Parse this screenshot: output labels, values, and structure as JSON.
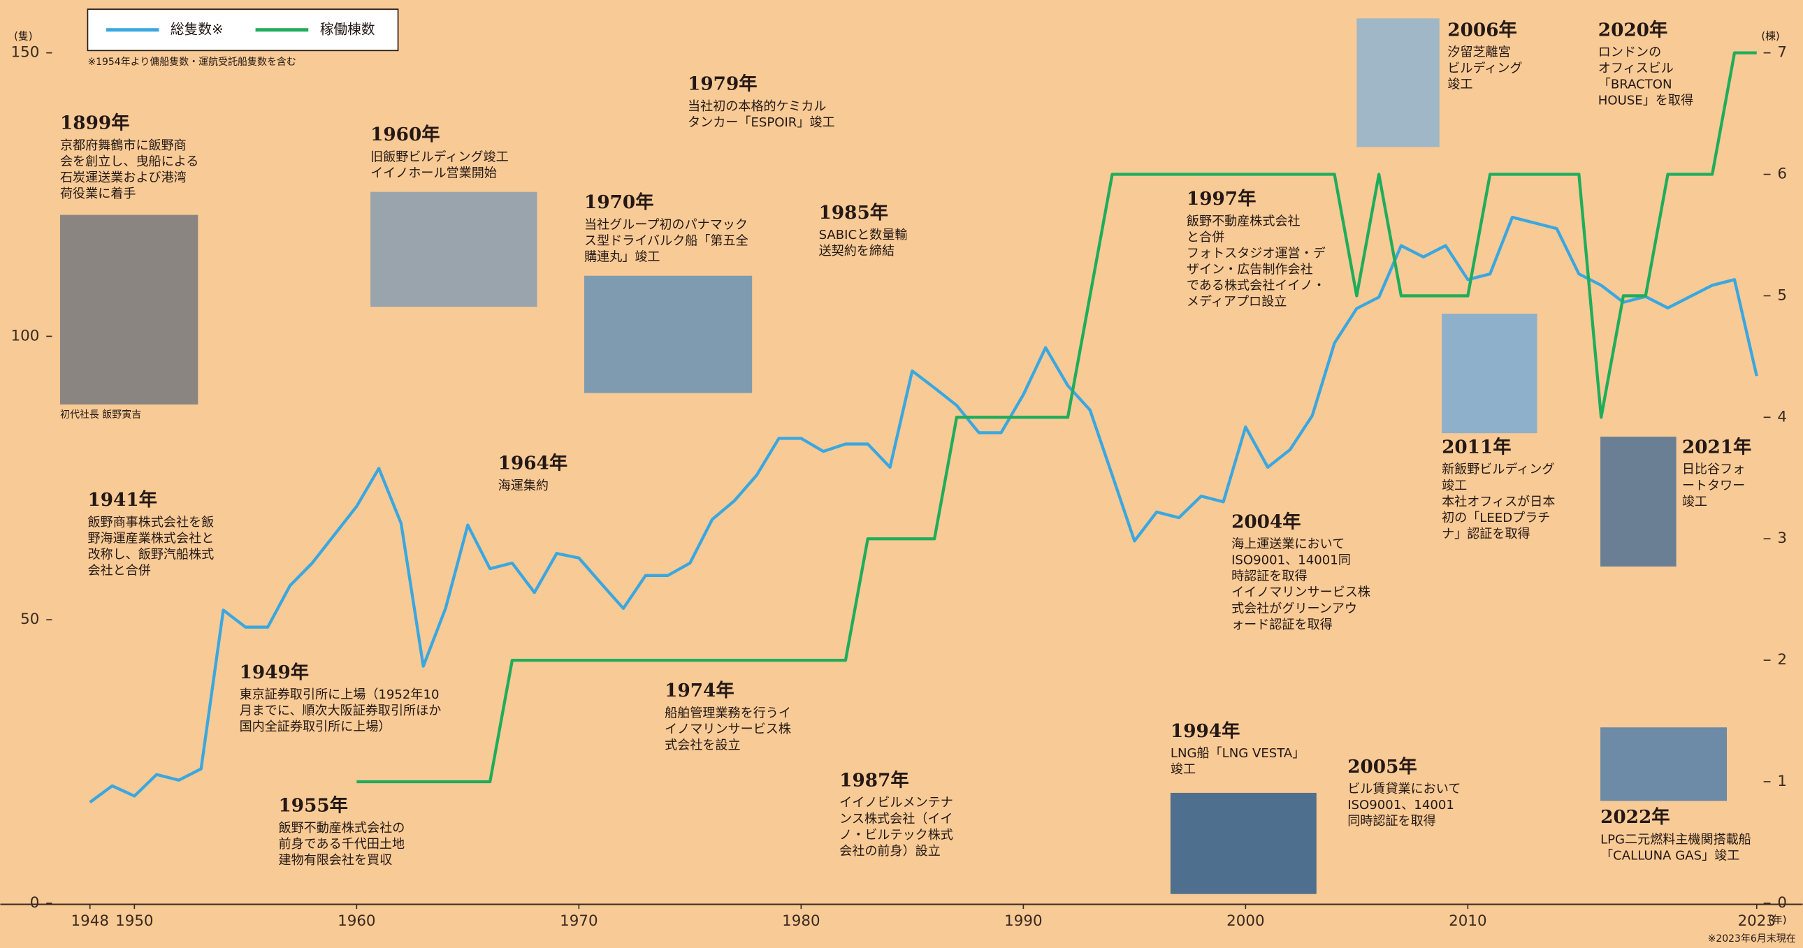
{
  "chart_data": {
    "type": "line",
    "y_label": "(隻)",
    "y2_label": "(棟)",
    "x_label": "(年)",
    "note_top": "※1954年より傭船隻数・運航受託船隻数を含む",
    "note_bottom": "※2023年6月末現在",
    "photo_caption": "初代社長 飯野寅吉",
    "x": [
      1948,
      1949,
      1950,
      1951,
      1952,
      1953,
      1954,
      1955,
      1956,
      1957,
      1958,
      1959,
      1960,
      1961,
      1962,
      1963,
      1964,
      1965,
      1966,
      1967,
      1968,
      1969,
      1970,
      1971,
      1972,
      1973,
      1974,
      1975,
      1976,
      1977,
      1978,
      1979,
      1980,
      1981,
      1982,
      1983,
      1984,
      1985,
      1986,
      1987,
      1988,
      1989,
      1990,
      1991,
      1992,
      1993,
      1994,
      1995,
      1996,
      1997,
      1998,
      1999,
      2000,
      2001,
      2002,
      2003,
      2004,
      2005,
      2006,
      2007,
      2008,
      2009,
      2010,
      2011,
      2012,
      2013,
      2014,
      2015,
      2016,
      2017,
      2018,
      2019,
      2020,
      2021,
      2022,
      2023
    ],
    "series": [
      {
        "name": "総隻数※",
        "color": "#3aa7e0",
        "values": [
          17.8,
          20.7,
          18.9,
          22.7,
          21.7,
          23.7,
          51.7,
          48.7,
          48.7,
          56,
          60,
          65,
          70,
          76.7,
          67,
          41.8,
          52,
          66.7,
          59,
          60,
          54.8,
          61.7,
          60.9,
          56.4,
          52,
          57.8,
          57.8,
          60,
          67.7,
          71,
          75.5,
          82,
          82,
          79.7,
          81,
          81,
          76.9,
          93.9,
          90.9,
          87.8,
          83,
          83,
          89.7,
          98,
          91.3,
          87,
          75.5,
          63.9,
          69,
          68,
          71.8,
          70.8,
          84,
          76.9,
          80,
          86,
          98.8,
          104.9,
          106.9,
          116,
          114,
          116,
          110,
          111,
          121,
          120,
          119,
          111,
          109,
          106,
          107,
          105,
          107,
          109,
          110,
          93
        ]
      },
      {
        "name": "稼働棟数",
        "color": "#1fad5c",
        "axis": "y2",
        "values": [
          null,
          null,
          null,
          null,
          null,
          null,
          null,
          null,
          null,
          null,
          null,
          null,
          1,
          1,
          1,
          1,
          1,
          1,
          1,
          2,
          2,
          2,
          2,
          2,
          2,
          2,
          2,
          2,
          2,
          2,
          2,
          2,
          2,
          2,
          2,
          3,
          3,
          3,
          3,
          4,
          4,
          4,
          4,
          4,
          4,
          5,
          6,
          6,
          6,
          6,
          6,
          6,
          6,
          6,
          6,
          6,
          6,
          5,
          6,
          5,
          5,
          5,
          5,
          6,
          6,
          6,
          6,
          6,
          4,
          5,
          5,
          6,
          6,
          6,
          7,
          7
        ]
      }
    ],
    "xlim": [
      1948,
      2023
    ],
    "xticks": [
      1948,
      1950,
      1960,
      1970,
      1980,
      1990,
      2000,
      2010,
      2023
    ],
    "ylim": [
      0,
      150
    ],
    "yticks": [
      0,
      50,
      100,
      150
    ],
    "y2lim": [
      0,
      7
    ],
    "y2ticks": [
      0,
      1,
      2,
      3,
      4,
      5,
      6,
      7
    ],
    "legend": "upper left",
    "annotations": [
      {
        "year": "1899年",
        "lines": [
          "京都府舞鶴市に飯野商",
          "会を創立し、曳船による",
          "石炭運送業および港湾",
          "荷役業に着手"
        ]
      },
      {
        "year": "1941年",
        "lines": [
          "飯野商事株式会社を飯",
          "野海運産業株式会社と",
          "改称し、飯野汽船株式",
          "会社と合併"
        ]
      },
      {
        "year": "1949年",
        "lines": [
          "東京証券取引所に上場（1952年10",
          "月までに、順次大阪証券取引所ほか",
          "国内全証券取引所に上場）"
        ]
      },
      {
        "year": "1955年",
        "lines": [
          "飯野不動産株式会社の",
          "前身である千代田土地",
          "建物有限会社を買収"
        ]
      },
      {
        "year": "1960年",
        "lines": [
          "旧飯野ビルディング竣工",
          "イイノホール営業開始"
        ]
      },
      {
        "year": "1964年",
        "lines": [
          "海運集約"
        ]
      },
      {
        "year": "1970年",
        "lines": [
          "当社グループ初のパナマック",
          "ス型ドライバルク船「第五全",
          "購連丸」竣工"
        ]
      },
      {
        "year": "1974年",
        "lines": [
          "船舶管理業務を行うイ",
          "イノマリンサービス株",
          "式会社を設立"
        ]
      },
      {
        "year": "1979年",
        "lines": [
          "当社初の本格的ケミカル",
          "タンカー「ESPOIR」竣工"
        ]
      },
      {
        "year": "1985年",
        "lines": [
          "SABICと数量輸",
          "送契約を締結"
        ]
      },
      {
        "year": "1987年",
        "lines": [
          "イイノビルメンテナ",
          "ンス株式会社（イイ",
          "ノ・ビルテック株式",
          "会社の前身）設立"
        ]
      },
      {
        "year": "1994年",
        "lines": [
          "LNG船「LNG VESTA」",
          "竣工"
        ]
      },
      {
        "year": "1997年",
        "lines": [
          "飯野不動産株式会社",
          "と合併",
          "フォトスタジオ運営・デ",
          "ザイン・広告制作会社",
          "である株式会社イイノ・",
          "メディアプロ設立"
        ]
      },
      {
        "year": "2004年",
        "lines": [
          "海上運送業において",
          "ISO9001、14001同",
          "時認証を取得",
          "イイノマリンサービス株",
          "式会社がグリーンアウ",
          "ォード認証を取得"
        ]
      },
      {
        "year": "2005年",
        "lines": [
          "ビル賃貸業において",
          "ISO9001、14001",
          "同時認証を取得"
        ]
      },
      {
        "year": "2006年",
        "lines": [
          "汐留芝離宮",
          "ビルディング",
          "竣工"
        ]
      },
      {
        "year": "2011年",
        "lines": [
          "新飯野ビルディング",
          "竣工",
          "本社オフィスが日本",
          "初の「LEEDプラチ",
          "ナ」認証を取得"
        ]
      },
      {
        "year": "2020年",
        "lines": [
          "ロンドンの",
          "オフィスビル",
          "「BRACTON",
          "HOUSE」を取得"
        ]
      },
      {
        "year": "2021年",
        "lines": [
          "日比谷フォ",
          "ートタワー",
          "竣工"
        ]
      },
      {
        "year": "2022年",
        "lines": [
          "LPG二元燃料主機関搭載船",
          "「CALLUNA GAS」竣工"
        ]
      }
    ]
  }
}
